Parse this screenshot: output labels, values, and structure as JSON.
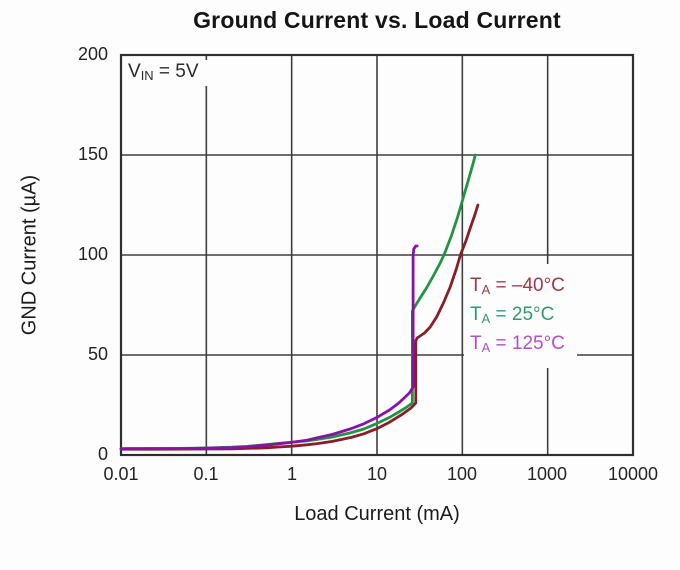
{
  "chart_data": {
    "type": "line",
    "title": "Ground Current vs. Load Current",
    "xlabel": "Load Current (mA)",
    "ylabel": "GND Current (µA)",
    "x_scale": "log",
    "xlim": [
      0.01,
      10000
    ],
    "ylim": [
      0,
      200
    ],
    "grid": "on",
    "x_ticks": [
      "0.01",
      "0.1",
      "1",
      "10",
      "100",
      "1000",
      "10000"
    ],
    "y_ticks": [
      "200",
      "150",
      "100",
      "50",
      "0"
    ],
    "annotation": {
      "main": "V",
      "sub": "IN",
      "rest": " = 5V"
    },
    "legend_position": "inside-right",
    "colors": {
      "grid": "#3f3f3f",
      "border": "#2e2e2e",
      "background": "#fdfdfd"
    },
    "series": [
      {
        "name": "TA = -40C",
        "legend": {
          "main": "T",
          "sub": "A",
          "rest": " = –40°C"
        },
        "line_color": "#8B1D26",
        "legend_color": "#A03A49",
        "points": [
          [
            0.01,
            2.9
          ],
          [
            0.03,
            2.9
          ],
          [
            0.1,
            3.0
          ],
          [
            0.2,
            3.1
          ],
          [
            0.3,
            3.3
          ],
          [
            0.5,
            3.6
          ],
          [
            0.7,
            4.0
          ],
          [
            1,
            4.4
          ],
          [
            1.5,
            5.1
          ],
          [
            2,
            5.7
          ],
          [
            3,
            6.8
          ],
          [
            5,
            8.8
          ],
          [
            7,
            10.6
          ],
          [
            10,
            13.2
          ],
          [
            14,
            16.4
          ],
          [
            20,
            20.5
          ],
          [
            25,
            23.5
          ],
          [
            28.5,
            26
          ],
          [
            28.5,
            57
          ],
          [
            29.5,
            58.5
          ],
          [
            32,
            59.5
          ],
          [
            36,
            61
          ],
          [
            42,
            64
          ],
          [
            50,
            69
          ],
          [
            60,
            76
          ],
          [
            72,
            84
          ],
          [
            85,
            93
          ],
          [
            95,
            100
          ],
          [
            110,
            107
          ],
          [
            125,
            114
          ],
          [
            140,
            120
          ],
          [
            152,
            125
          ]
        ]
      },
      {
        "name": "TA = 25C",
        "legend": {
          "main": "T",
          "sub": "A",
          "rest": " = 25°C"
        },
        "line_color": "#219441",
        "legend_color": "#2E9B6F",
        "points": [
          [
            0.01,
            3.2
          ],
          [
            0.05,
            3.3
          ],
          [
            0.1,
            3.5
          ],
          [
            0.2,
            3.9
          ],
          [
            0.3,
            4.3
          ],
          [
            0.5,
            5.2
          ],
          [
            0.7,
            5.8
          ],
          [
            1,
            6.4
          ],
          [
            1.5,
            7.1
          ],
          [
            2,
            7.8
          ],
          [
            3,
            9.0
          ],
          [
            5,
            11.2
          ],
          [
            7,
            13.0
          ],
          [
            10,
            15.8
          ],
          [
            14,
            18.8
          ],
          [
            18,
            21.5
          ],
          [
            22,
            23.8
          ],
          [
            26,
            26
          ],
          [
            26,
            72
          ],
          [
            28,
            74.5
          ],
          [
            32,
            78.5
          ],
          [
            38,
            83.5
          ],
          [
            45,
            89
          ],
          [
            55,
            96
          ],
          [
            63,
            101.5
          ],
          [
            75,
            110
          ],
          [
            88,
            119
          ],
          [
            100,
            127
          ],
          [
            115,
            136
          ],
          [
            130,
            144
          ],
          [
            142,
            150
          ]
        ]
      },
      {
        "name": "TA = 125C",
        "legend": {
          "main": "T",
          "sub": "A",
          "rest": " = 125°C"
        },
        "line_color": "#8912A6",
        "legend_color": "#B44FC8",
        "points": [
          [
            0.01,
            3.1
          ],
          [
            0.05,
            3.2
          ],
          [
            0.1,
            3.4
          ],
          [
            0.2,
            3.7
          ],
          [
            0.3,
            4.1
          ],
          [
            0.5,
            4.9
          ],
          [
            0.7,
            5.6
          ],
          [
            1,
            6.3
          ],
          [
            1.5,
            7.4
          ],
          [
            2,
            8.6
          ],
          [
            3,
            10.3
          ],
          [
            5,
            13.2
          ],
          [
            7,
            15.6
          ],
          [
            10,
            18.8
          ],
          [
            14,
            22.5
          ],
          [
            18,
            26
          ],
          [
            22,
            29.5
          ],
          [
            24,
            31
          ],
          [
            26.5,
            34
          ],
          [
            26.5,
            100
          ],
          [
            27,
            103
          ],
          [
            28.5,
            104.5
          ],
          [
            29.5,
            104.5
          ]
        ]
      }
    ]
  }
}
